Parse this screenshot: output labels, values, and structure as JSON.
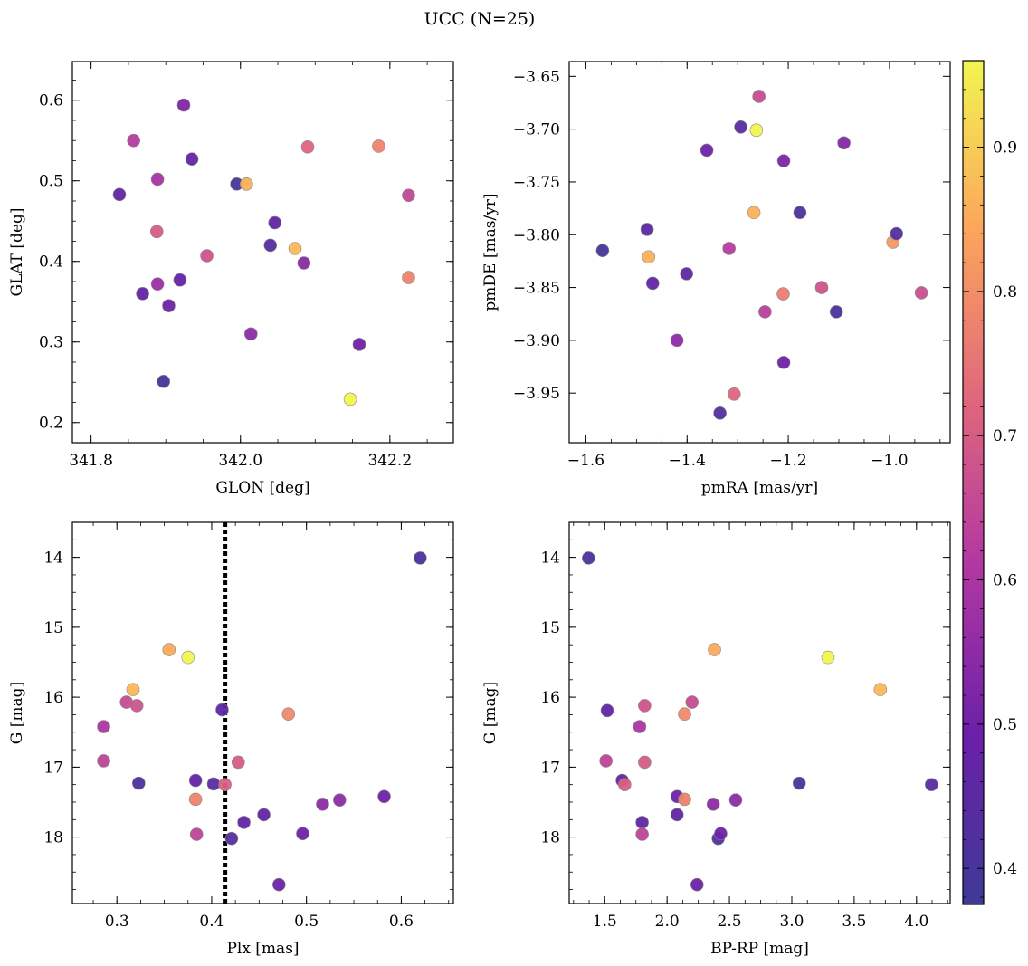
{
  "title": "UCC (N=25)",
  "colorbar": {
    "min": 0.375,
    "max": 0.96,
    "ticks": [
      0.4,
      0.5,
      0.6,
      0.7,
      0.8,
      0.9
    ],
    "colormap": "plasma"
  },
  "chart_data": [
    {
      "type": "scatter",
      "xlabel": "GLON [deg]",
      "ylabel": "GLAT [deg]",
      "xlim": [
        341.775,
        342.285
      ],
      "ylim": [
        0.175,
        0.648
      ],
      "xticks": [
        "341.8",
        "342.0",
        "342.2"
      ],
      "xtick_values": [
        341.8,
        342.0,
        342.2
      ],
      "yticks": [
        "0.2",
        "0.3",
        "0.4",
        "0.5",
        "0.6"
      ],
      "ytick_values": [
        0.2,
        0.3,
        0.4,
        0.5,
        0.6
      ],
      "invert_y": false,
      "points": [
        {
          "x": 341.838,
          "y": 0.483,
          "c": 0.47
        },
        {
          "x": 341.857,
          "y": 0.55,
          "c": 0.62
        },
        {
          "x": 341.869,
          "y": 0.36,
          "c": 0.47
        },
        {
          "x": 341.888,
          "y": 0.437,
          "c": 0.7
        },
        {
          "x": 341.889,
          "y": 0.502,
          "c": 0.59
        },
        {
          "x": 341.889,
          "y": 0.372,
          "c": 0.57
        },
        {
          "x": 341.897,
          "y": 0.251,
          "c": 0.39
        },
        {
          "x": 341.904,
          "y": 0.345,
          "c": 0.5
        },
        {
          "x": 341.919,
          "y": 0.377,
          "c": 0.48
        },
        {
          "x": 341.924,
          "y": 0.594,
          "c": 0.53
        },
        {
          "x": 341.935,
          "y": 0.527,
          "c": 0.47
        },
        {
          "x": 341.955,
          "y": 0.407,
          "c": 0.68
        },
        {
          "x": 341.995,
          "y": 0.496,
          "c": 0.39
        },
        {
          "x": 342.008,
          "y": 0.496,
          "c": 0.86
        },
        {
          "x": 342.014,
          "y": 0.31,
          "c": 0.55
        },
        {
          "x": 342.04,
          "y": 0.42,
          "c": 0.43
        },
        {
          "x": 342.046,
          "y": 0.448,
          "c": 0.47
        },
        {
          "x": 342.073,
          "y": 0.416,
          "c": 0.87
        },
        {
          "x": 342.085,
          "y": 0.398,
          "c": 0.54
        },
        {
          "x": 342.09,
          "y": 0.542,
          "c": 0.72
        },
        {
          "x": 342.147,
          "y": 0.229,
          "c": 0.96
        },
        {
          "x": 342.159,
          "y": 0.297,
          "c": 0.5
        },
        {
          "x": 342.185,
          "y": 0.543,
          "c": 0.78
        },
        {
          "x": 342.225,
          "y": 0.482,
          "c": 0.65
        },
        {
          "x": 342.225,
          "y": 0.38,
          "c": 0.78
        }
      ]
    },
    {
      "type": "scatter",
      "xlabel": "pmRA [mas/yr]",
      "ylabel": "pmDE [mas/yr]",
      "xlim": [
        -1.633,
        -0.88
      ],
      "ylim": [
        -3.997,
        -3.636
      ],
      "xticks": [
        "−1.6",
        "−1.4",
        "−1.2",
        "−1.0"
      ],
      "xtick_values": [
        -1.6,
        -1.4,
        -1.2,
        -1.0
      ],
      "yticks": [
        "−3.65",
        "−3.70",
        "−3.75",
        "−3.80",
        "−3.85",
        "−3.90",
        "−3.95"
      ],
      "ytick_values": [
        -3.65,
        -3.7,
        -3.75,
        -3.8,
        -3.85,
        -3.9,
        -3.95
      ],
      "invert_y": false,
      "points": [
        {
          "x": -1.567,
          "y": -3.815,
          "c": 0.39
        },
        {
          "x": -1.479,
          "y": -3.795,
          "c": 0.45
        },
        {
          "x": -1.476,
          "y": -3.821,
          "c": 0.86
        },
        {
          "x": -1.468,
          "y": -3.846,
          "c": 0.47
        },
        {
          "x": -1.42,
          "y": -3.9,
          "c": 0.55
        },
        {
          "x": -1.401,
          "y": -3.837,
          "c": 0.46
        },
        {
          "x": -1.361,
          "y": -3.72,
          "c": 0.5
        },
        {
          "x": -1.335,
          "y": -3.969,
          "c": 0.43
        },
        {
          "x": -1.317,
          "y": -3.813,
          "c": 0.62
        },
        {
          "x": -1.307,
          "y": -3.951,
          "c": 0.72
        },
        {
          "x": -1.294,
          "y": -3.698,
          "c": 0.44
        },
        {
          "x": -1.268,
          "y": -3.779,
          "c": 0.86
        },
        {
          "x": -1.263,
          "y": -3.701,
          "c": 0.96
        },
        {
          "x": -1.258,
          "y": -3.669,
          "c": 0.66
        },
        {
          "x": -1.246,
          "y": -3.873,
          "c": 0.63
        },
        {
          "x": -1.21,
          "y": -3.856,
          "c": 0.77
        },
        {
          "x": -1.209,
          "y": -3.73,
          "c": 0.52
        },
        {
          "x": -1.209,
          "y": -3.921,
          "c": 0.5
        },
        {
          "x": -1.177,
          "y": -3.779,
          "c": 0.41
        },
        {
          "x": -1.134,
          "y": -3.85,
          "c": 0.68
        },
        {
          "x": -1.105,
          "y": -3.873,
          "c": 0.41
        },
        {
          "x": -1.09,
          "y": -3.713,
          "c": 0.54
        },
        {
          "x": -0.993,
          "y": -3.807,
          "c": 0.82
        },
        {
          "x": -0.986,
          "y": -3.799,
          "c": 0.43
        },
        {
          "x": -0.937,
          "y": -3.855,
          "c": 0.67
        }
      ]
    },
    {
      "type": "scatter",
      "xlabel": "Plx [mas]",
      "ylabel": "G [mag]",
      "xlim": [
        0.253,
        0.655
      ],
      "ylim": [
        13.5,
        18.95
      ],
      "xticks": [
        "0.3",
        "0.4",
        "0.5",
        "0.6"
      ],
      "xtick_values": [
        0.3,
        0.4,
        0.5,
        0.6
      ],
      "yticks": [
        "14",
        "15",
        "16",
        "17",
        "18"
      ],
      "ytick_values": [
        14,
        15,
        16,
        17,
        18
      ],
      "invert_y": true,
      "vline": {
        "x": 0.414,
        "style": "dotted"
      },
      "points": [
        {
          "x": 0.286,
          "y": 16.42,
          "c": 0.6
        },
        {
          "x": 0.286,
          "y": 16.91,
          "c": 0.64
        },
        {
          "x": 0.31,
          "y": 16.07,
          "c": 0.66
        },
        {
          "x": 0.317,
          "y": 15.89,
          "c": 0.87
        },
        {
          "x": 0.321,
          "y": 16.12,
          "c": 0.68
        },
        {
          "x": 0.323,
          "y": 17.23,
          "c": 0.41
        },
        {
          "x": 0.355,
          "y": 15.32,
          "c": 0.85
        },
        {
          "x": 0.375,
          "y": 15.43,
          "c": 0.96
        },
        {
          "x": 0.383,
          "y": 17.19,
          "c": 0.47
        },
        {
          "x": 0.383,
          "y": 17.46,
          "c": 0.78
        },
        {
          "x": 0.384,
          "y": 17.96,
          "c": 0.64
        },
        {
          "x": 0.402,
          "y": 17.24,
          "c": 0.44
        },
        {
          "x": 0.411,
          "y": 16.18,
          "c": 0.46
        },
        {
          "x": 0.414,
          "y": 17.25,
          "c": 0.71
        },
        {
          "x": 0.421,
          "y": 18.02,
          "c": 0.43
        },
        {
          "x": 0.428,
          "y": 16.93,
          "c": 0.7
        },
        {
          "x": 0.434,
          "y": 17.79,
          "c": 0.47
        },
        {
          "x": 0.455,
          "y": 17.68,
          "c": 0.47
        },
        {
          "x": 0.471,
          "y": 18.68,
          "c": 0.5
        },
        {
          "x": 0.481,
          "y": 16.24,
          "c": 0.79
        },
        {
          "x": 0.496,
          "y": 17.95,
          "c": 0.5
        },
        {
          "x": 0.517,
          "y": 17.53,
          "c": 0.55
        },
        {
          "x": 0.535,
          "y": 17.47,
          "c": 0.55
        },
        {
          "x": 0.582,
          "y": 17.42,
          "c": 0.5
        },
        {
          "x": 0.62,
          "y": 14.01,
          "c": 0.41
        }
      ]
    },
    {
      "type": "scatter",
      "xlabel": "BP-RP [mag]",
      "ylabel": "G [mag]",
      "xlim": [
        1.215,
        4.27
      ],
      "ylim": [
        13.5,
        18.95
      ],
      "xticks": [
        "1.5",
        "2.0",
        "2.5",
        "3.0",
        "3.5",
        "4.0"
      ],
      "xtick_values": [
        1.5,
        2.0,
        2.5,
        3.0,
        3.5,
        4.0
      ],
      "yticks": [
        "14",
        "15",
        "16",
        "17",
        "18"
      ],
      "ytick_values": [
        14,
        15,
        16,
        17,
        18
      ],
      "invert_y": true,
      "points": [
        {
          "x": 1.37,
          "y": 14.01,
          "c": 0.41
        },
        {
          "x": 1.51,
          "y": 16.91,
          "c": 0.64
        },
        {
          "x": 1.52,
          "y": 16.19,
          "c": 0.47
        },
        {
          "x": 1.64,
          "y": 17.19,
          "c": 0.47
        },
        {
          "x": 1.66,
          "y": 17.25,
          "c": 0.71
        },
        {
          "x": 1.78,
          "y": 16.42,
          "c": 0.6
        },
        {
          "x": 1.8,
          "y": 17.79,
          "c": 0.47
        },
        {
          "x": 1.8,
          "y": 17.96,
          "c": 0.64
        },
        {
          "x": 1.82,
          "y": 16.12,
          "c": 0.68
        },
        {
          "x": 1.82,
          "y": 16.93,
          "c": 0.7
        },
        {
          "x": 2.08,
          "y": 17.42,
          "c": 0.5
        },
        {
          "x": 2.08,
          "y": 17.68,
          "c": 0.47
        },
        {
          "x": 2.14,
          "y": 17.46,
          "c": 0.78
        },
        {
          "x": 2.14,
          "y": 16.24,
          "c": 0.79
        },
        {
          "x": 2.2,
          "y": 16.07,
          "c": 0.66
        },
        {
          "x": 2.24,
          "y": 18.68,
          "c": 0.5
        },
        {
          "x": 2.37,
          "y": 17.53,
          "c": 0.55
        },
        {
          "x": 2.38,
          "y": 15.32,
          "c": 0.85
        },
        {
          "x": 2.41,
          "y": 18.02,
          "c": 0.43
        },
        {
          "x": 2.43,
          "y": 17.95,
          "c": 0.5
        },
        {
          "x": 2.55,
          "y": 17.47,
          "c": 0.55
        },
        {
          "x": 3.06,
          "y": 17.23,
          "c": 0.41
        },
        {
          "x": 3.29,
          "y": 15.43,
          "c": 0.96
        },
        {
          "x": 3.71,
          "y": 15.89,
          "c": 0.87
        },
        {
          "x": 4.12,
          "y": 17.25,
          "c": 0.44
        }
      ]
    }
  ]
}
